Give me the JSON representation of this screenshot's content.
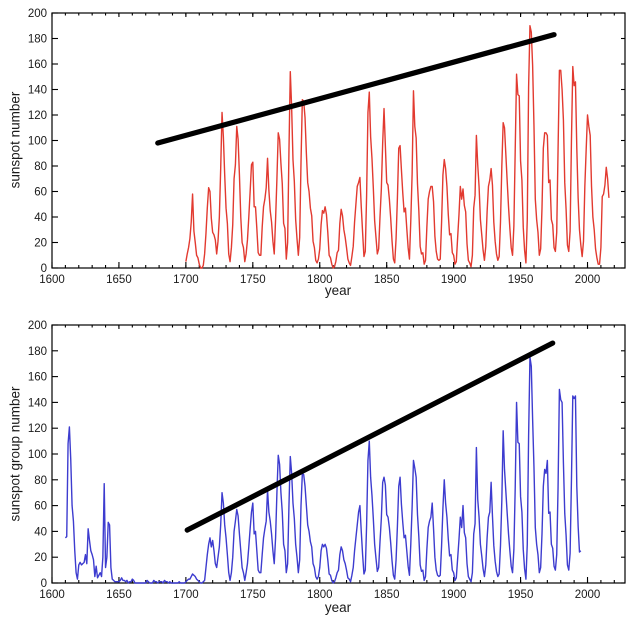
{
  "figure": {
    "background": "#ffffff"
  },
  "chart_data": [
    {
      "type": "line",
      "title": "",
      "xlabel": "year",
      "ylabel": "sunspot number",
      "xlim": [
        1600,
        2028
      ],
      "ylim": [
        0,
        200
      ],
      "xticks": [
        1600,
        1650,
        1700,
        1750,
        1800,
        1850,
        1900,
        1950,
        2000
      ],
      "yticks": [
        0,
        20,
        40,
        60,
        80,
        100,
        120,
        140,
        160,
        180,
        200
      ],
      "minor_xtick_step": 10,
      "grid": false,
      "legend": "none",
      "series": [
        {
          "name": "annual-sunspot-number",
          "color": "#e23a30",
          "x_start": 1700,
          "x_step": 1,
          "values": [
            5,
            11,
            16,
            23,
            36,
            58,
            29,
            20,
            10,
            8,
            3,
            0,
            0,
            2,
            11,
            27,
            47,
            63,
            60,
            39,
            28,
            26,
            22,
            11,
            21,
            40,
            78,
            122,
            103,
            73,
            47,
            35,
            11,
            5,
            16,
            34,
            70,
            81,
            111,
            101,
            73,
            40,
            20,
            16,
            5,
            11,
            22,
            40,
            60,
            81,
            83,
            48,
            48,
            31,
            12,
            10,
            10,
            32,
            48,
            54,
            63,
            86,
            61,
            45,
            36,
            21,
            11,
            38,
            70,
            106,
            101,
            82,
            66,
            35,
            31,
            7,
            20,
            92,
            154,
            126,
            85,
            68,
            38,
            23,
            10,
            24,
            83,
            132,
            131,
            118,
            90,
            67,
            60,
            47,
            41,
            21,
            16,
            6,
            4,
            7,
            15,
            34,
            45,
            43,
            48,
            42,
            28,
            10,
            8,
            3,
            0,
            1,
            5,
            12,
            14,
            35,
            46,
            41,
            30,
            24,
            16,
            7,
            4,
            2,
            9,
            17,
            36,
            50,
            64,
            67,
            71,
            48,
            28,
            9,
            13,
            57,
            122,
            138,
            103,
            86,
            63,
            37,
            24,
            11,
            15,
            40,
            62,
            98,
            125,
            96,
            67,
            65,
            54,
            39,
            21,
            7,
            4,
            23,
            55,
            94,
            96,
            77,
            59,
            44,
            47,
            31,
            16,
            7,
            37,
            74,
            139,
            111,
            102,
            66,
            45,
            17,
            11,
            12,
            3,
            6,
            32,
            54,
            60,
            64,
            64,
            52,
            25,
            13,
            7,
            6,
            7,
            36,
            73,
            85,
            78,
            64,
            42,
            26,
            27,
            12,
            10,
            3,
            5,
            24,
            42,
            64,
            54,
            62,
            49,
            44,
            19,
            6,
            4,
            1,
            10,
            47,
            57,
            104,
            81,
            64,
            38,
            26,
            14,
            6,
            17,
            44,
            64,
            69,
            78,
            65,
            36,
            21,
            11,
            6,
            9,
            36,
            80,
            114,
            110,
            89,
            68,
            48,
            31,
            16,
            10,
            33,
            93,
            152,
            136,
            135,
            84,
            69,
            32,
            14,
            4,
            38,
            142,
            190,
            185,
            159,
            112,
            54,
            38,
            28,
            10,
            15,
            47,
            94,
            106,
            106,
            104,
            67,
            69,
            38,
            34,
            16,
            13,
            28,
            93,
            155,
            155,
            140,
            116,
            67,
            46,
            18,
            13,
            29,
            100,
            158,
            143,
            146,
            94,
            55,
            30,
            18,
            9,
            21,
            64,
            93,
            120,
            111,
            104,
            64,
            40,
            30,
            15,
            8,
            3,
            3,
            16,
            56,
            58,
            65,
            79,
            70,
            55
          ]
        }
      ],
      "trend_line": {
        "name": "linear-trend",
        "color": "#000000",
        "x": [
          1679,
          1975
        ],
        "y": [
          98,
          183
        ]
      }
    },
    {
      "type": "line",
      "title": "",
      "xlabel": "year",
      "ylabel": "sunspot group number",
      "xlim": [
        1600,
        2028
      ],
      "ylim": [
        0,
        200
      ],
      "xticks": [
        1600,
        1650,
        1700,
        1750,
        1800,
        1850,
        1900,
        1950,
        2000
      ],
      "yticks": [
        0,
        20,
        40,
        60,
        80,
        100,
        120,
        140,
        160,
        180,
        200
      ],
      "minor_xtick_step": 10,
      "grid": false,
      "legend": "none",
      "series": [
        {
          "name": "annual-sunspot-group-number",
          "color": "#3d3ccf",
          "x_start": 1610,
          "x_step": 1,
          "values": [
            35,
            36,
            108,
            121,
            96,
            60,
            48,
            25,
            8,
            3,
            14,
            16,
            14,
            15,
            16,
            22,
            15,
            42,
            33,
            25,
            22,
            18,
            5,
            13,
            4,
            6,
            8,
            5,
            20,
            77,
            12,
            20,
            47,
            45,
            12,
            3,
            2,
            1,
            1,
            1,
            1,
            2,
            4,
            2,
            2,
            1,
            2,
            0,
            1,
            1,
            3,
            2,
            0,
            0,
            0,
            0,
            0,
            0,
            0,
            0,
            0,
            2,
            1,
            0,
            0,
            0,
            2,
            1,
            1,
            0,
            1,
            1,
            1,
            0,
            2,
            1,
            1,
            0,
            1,
            0,
            0,
            0,
            0,
            0,
            0,
            1,
            0,
            0,
            0,
            0,
            1,
            2,
            3,
            3,
            5,
            7,
            6,
            5,
            3,
            2,
            1,
            0,
            0,
            1,
            2,
            12,
            22,
            30,
            35,
            28,
            33,
            25,
            15,
            12,
            20,
            28,
            45,
            70,
            62,
            45,
            35,
            22,
            8,
            2,
            8,
            20,
            40,
            48,
            57,
            52,
            38,
            25,
            12,
            8,
            2,
            8,
            15,
            28,
            42,
            55,
            62,
            38,
            40,
            25,
            10,
            8,
            8,
            22,
            35,
            42,
            48,
            72,
            55,
            48,
            38,
            25,
            15,
            35,
            70,
            99,
            92,
            70,
            55,
            30,
            25,
            8,
            15,
            60,
            98,
            85,
            62,
            50,
            30,
            20,
            8,
            18,
            60,
            85,
            84,
            75,
            60,
            45,
            40,
            32,
            28,
            15,
            12,
            5,
            3,
            5,
            12,
            25,
            30,
            28,
            30,
            27,
            18,
            7,
            6,
            2,
            0,
            1,
            4,
            8,
            10,
            22,
            28,
            25,
            18,
            15,
            10,
            4,
            3,
            1,
            6,
            12,
            25,
            35,
            45,
            55,
            60,
            40,
            22,
            7,
            10,
            45,
            95,
            110,
            82,
            68,
            50,
            30,
            19,
            9,
            12,
            32,
            50,
            78,
            82,
            76,
            53,
            51,
            43,
            31,
            17,
            6,
            3,
            18,
            44,
            75,
            82,
            61,
            47,
            35,
            37,
            25,
            13,
            6,
            30,
            59,
            95,
            89,
            82,
            53,
            36,
            14,
            9,
            10,
            2,
            5,
            26,
            43,
            48,
            51,
            62,
            42,
            20,
            10,
            6,
            5,
            6,
            29,
            58,
            80,
            62,
            51,
            34,
            21,
            22,
            10,
            8,
            2,
            4,
            19,
            34,
            51,
            43,
            60,
            39,
            35,
            15,
            5,
            3,
            1,
            8,
            38,
            46,
            105,
            65,
            51,
            30,
            21,
            11,
            5,
            14,
            35,
            51,
            55,
            78,
            52,
            29,
            17,
            9,
            5,
            7,
            29,
            64,
            118,
            88,
            71,
            54,
            38,
            25,
            13,
            8,
            26,
            74,
            140,
            109,
            108,
            67,
            55,
            26,
            11,
            3,
            30,
            114,
            175,
            168,
            127,
            90,
            43,
            30,
            22,
            8,
            12,
            38,
            75,
            88,
            85,
            95,
            54,
            55,
            30,
            27,
            13,
            10,
            22,
            74,
            150,
            142,
            140,
            93,
            54,
            37,
            14,
            10,
            23,
            80,
            145,
            143,
            145,
            75,
            44,
            24,
            25
          ]
        }
      ],
      "trend_line": {
        "name": "linear-trend",
        "color": "#000000",
        "x": [
          1701,
          1974
        ],
        "y": [
          41,
          186
        ]
      }
    }
  ]
}
